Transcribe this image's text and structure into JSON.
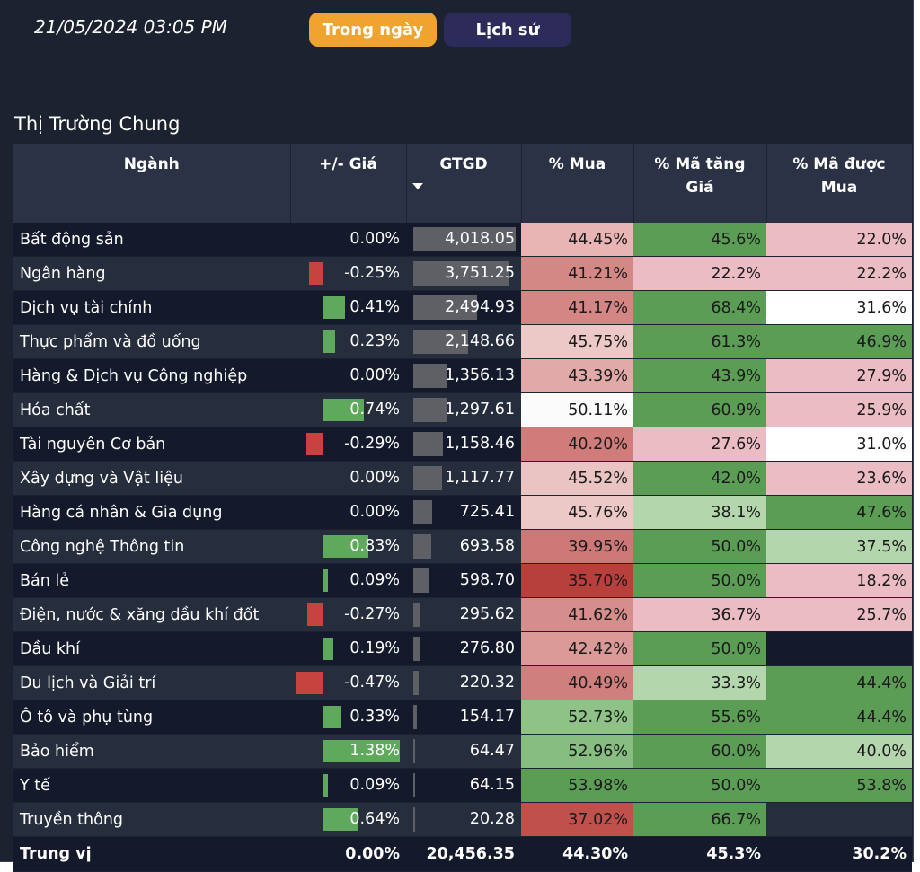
{
  "header": {
    "datetime": "21/05/2024 03:05 PM",
    "tab_today": "Trong ngày",
    "tab_history": "Lịch sử",
    "section_title": "Thị Trường Chung"
  },
  "colors": {
    "accent_orange": "#f0a430",
    "tab_dark": "#2c2b5a",
    "positive_bar": "#5ea95c",
    "negative_bar": "#c64340",
    "value_bar": "#5f6066"
  },
  "table": {
    "columns": [
      "Ngành",
      "+/- Giá",
      "GTGD",
      "% Mua",
      "% Mã tăng Giá",
      "% Mã được Mua"
    ],
    "sort_column": "GTGD",
    "rows": [
      {
        "name": "Bất động sản",
        "change": "0.00%",
        "change_val": 0.0,
        "value": "4,018.05",
        "value_num": 4018.05,
        "buy": "44.45%",
        "rise": "45.6%",
        "bought": "22.0%",
        "buy_bg": "#e8b4b4",
        "rise_bg": "#5b9d55",
        "bought_bg": "#ecbcc4"
      },
      {
        "name": "Ngân hàng",
        "change": "-0.25%",
        "change_val": -0.25,
        "value": "3,751.25",
        "value_num": 3751.25,
        "buy": "41.21%",
        "rise": "22.2%",
        "bought": "22.2%",
        "buy_bg": "#d48886",
        "rise_bg": "#ecbcc4",
        "bought_bg": "#ecbcc4"
      },
      {
        "name": "Dịch vụ tài chính",
        "change": "0.41%",
        "change_val": 0.41,
        "value": "2,494.93",
        "value_num": 2494.93,
        "buy": "41.17%",
        "rise": "68.4%",
        "bought": "31.6%",
        "buy_bg": "#d48684",
        "rise_bg": "#5b9d55",
        "bought_bg": "#ffffff"
      },
      {
        "name": "Thực phẩm và đồ uống",
        "change": "0.23%",
        "change_val": 0.23,
        "value": "2,148.66",
        "value_num": 2148.66,
        "buy": "45.75%",
        "rise": "61.3%",
        "bought": "46.9%",
        "buy_bg": "#ecc8c6",
        "rise_bg": "#5b9d55",
        "bought_bg": "#5b9d55"
      },
      {
        "name": "Hàng & Dịch vụ Công nghiệp",
        "change": "0.00%",
        "change_val": 0.0,
        "value": "1,356.13",
        "value_num": 1356.13,
        "buy": "43.39%",
        "rise": "43.9%",
        "bought": "27.9%",
        "buy_bg": "#e0aaa8",
        "rise_bg": "#5b9d55",
        "bought_bg": "#ecbcc4"
      },
      {
        "name": "Hóa chất",
        "change": "0.74%",
        "change_val": 0.74,
        "value": "1,297.61",
        "value_num": 1297.61,
        "buy": "50.11%",
        "rise": "60.9%",
        "bought": "25.9%",
        "buy_bg": "#fbfbfb",
        "rise_bg": "#5b9d55",
        "bought_bg": "#ecbcc4"
      },
      {
        "name": "Tài nguyên Cơ bản",
        "change": "-0.29%",
        "change_val": -0.29,
        "value": "1,158.46",
        "value_num": 1158.46,
        "buy": "40.20%",
        "rise": "27.6%",
        "bought": "31.0%",
        "buy_bg": "#cf7c7a",
        "rise_bg": "#ecbcc4",
        "bought_bg": "#ffffff"
      },
      {
        "name": "Xây dựng và Vật liệu",
        "change": "0.00%",
        "change_val": 0.0,
        "value": "1,117.77",
        "value_num": 1117.77,
        "buy": "45.52%",
        "rise": "42.0%",
        "bought": "23.6%",
        "buy_bg": "#eac4c2",
        "rise_bg": "#5b9d55",
        "bought_bg": "#ecbcc4"
      },
      {
        "name": "Hàng cá nhân & Gia dụng",
        "change": "0.00%",
        "change_val": 0.0,
        "value": "725.41",
        "value_num": 725.41,
        "buy": "45.76%",
        "rise": "38.1%",
        "bought": "47.6%",
        "buy_bg": "#ecc8c6",
        "rise_bg": "#b4d6ac",
        "bought_bg": "#5b9d55"
      },
      {
        "name": "Công nghệ Thông tin",
        "change": "0.83%",
        "change_val": 0.83,
        "value": "693.58",
        "value_num": 693.58,
        "buy": "39.95%",
        "rise": "50.0%",
        "bought": "37.5%",
        "buy_bg": "#cc7876",
        "rise_bg": "#5b9d55",
        "bought_bg": "#b4d6ac"
      },
      {
        "name": "Bán lẻ",
        "change": "0.09%",
        "change_val": 0.09,
        "value": "598.70",
        "value_num": 598.7,
        "buy": "35.70%",
        "rise": "50.0%",
        "bought": "18.2%",
        "buy_bg": "#b8403c",
        "rise_bg": "#5b9d55",
        "bought_bg": "#ecbcc4"
      },
      {
        "name": "Điện, nước & xăng dầu khí đốt",
        "change": "-0.27%",
        "change_val": -0.27,
        "value": "295.62",
        "value_num": 295.62,
        "buy": "41.62%",
        "rise": "36.7%",
        "bought": "25.7%",
        "buy_bg": "#d68e8c",
        "rise_bg": "#ecbcc4",
        "bought_bg": "#ecbcc4"
      },
      {
        "name": "Dầu khí",
        "change": "0.19%",
        "change_val": 0.19,
        "value": "276.80",
        "value_num": 276.8,
        "buy": "42.42%",
        "rise": "50.0%",
        "bought": "",
        "buy_bg": "#da9a98",
        "rise_bg": "#5b9d55",
        "bought_bg": "#141a2b"
      },
      {
        "name": "Du lịch và Giải trí",
        "change": "-0.47%",
        "change_val": -0.47,
        "value": "220.32",
        "value_num": 220.32,
        "buy": "40.49%",
        "rise": "33.3%",
        "bought": "44.4%",
        "buy_bg": "#cf807e",
        "rise_bg": "#b4d6ac",
        "bought_bg": "#5b9d55"
      },
      {
        "name": "Ô tô và phụ tùng",
        "change": "0.33%",
        "change_val": 0.33,
        "value": "154.17",
        "value_num": 154.17,
        "buy": "52.73%",
        "rise": "55.6%",
        "bought": "44.4%",
        "buy_bg": "#8fc287",
        "rise_bg": "#5b9d55",
        "bought_bg": "#5b9d55"
      },
      {
        "name": "Bảo hiểm",
        "change": "1.38%",
        "change_val": 1.38,
        "value": "64.47",
        "value_num": 64.47,
        "buy": "52.96%",
        "rise": "60.0%",
        "bought": "40.0%",
        "buy_bg": "#87bd80",
        "rise_bg": "#5b9d55",
        "bought_bg": "#b4d6ac"
      },
      {
        "name": "Y tế",
        "change": "0.09%",
        "change_val": 0.09,
        "value": "64.15",
        "value_num": 64.15,
        "buy": "53.98%",
        "rise": "50.0%",
        "bought": "53.8%",
        "buy_bg": "#5b9d55",
        "rise_bg": "#5b9d55",
        "bought_bg": "#5b9d55"
      },
      {
        "name": "Truyền thông",
        "change": "0.64%",
        "change_val": 0.64,
        "value": "20.28",
        "value_num": 20.28,
        "buy": "37.02%",
        "rise": "66.7%",
        "bought": "",
        "buy_bg": "#c0504c",
        "rise_bg": "#5b9d55",
        "bought_bg": "#262d3c"
      }
    ],
    "total": {
      "name": "Trung vị",
      "change": "0.00%",
      "value": "20,456.35",
      "buy": "44.30%",
      "rise": "45.3%",
      "bought": "30.2%"
    }
  }
}
